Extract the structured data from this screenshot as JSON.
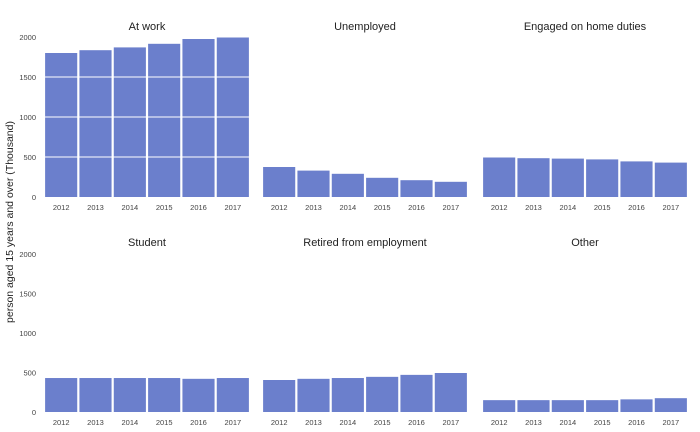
{
  "chart_data": {
    "type": "bar",
    "ylabel": "person aged 15 years and over (Thousand)",
    "categories": [
      "2012",
      "2013",
      "2014",
      "2015",
      "2016",
      "2017"
    ],
    "y_ticks": [
      "0",
      "500",
      "1000",
      "1500",
      "2000"
    ],
    "ylim": [
      0,
      2000
    ],
    "grid": true,
    "bar_color": "#6b7fcc",
    "panels": [
      {
        "title": "At work",
        "values": [
          1800,
          1835,
          1870,
          1915,
          1975,
          2000
        ]
      },
      {
        "title": "Unemployed",
        "values": [
          375,
          330,
          290,
          240,
          210,
          190
        ]
      },
      {
        "title": "Engaged on home duties",
        "values": [
          500,
          485,
          480,
          470,
          445,
          430
        ]
      },
      {
        "title": "Student",
        "values": [
          430,
          430,
          430,
          430,
          420,
          430
        ]
      },
      {
        "title": "Retired from employment",
        "values": [
          405,
          420,
          430,
          445,
          470,
          495
        ]
      },
      {
        "title": "Other",
        "values": [
          150,
          150,
          150,
          150,
          160,
          175
        ]
      }
    ]
  }
}
